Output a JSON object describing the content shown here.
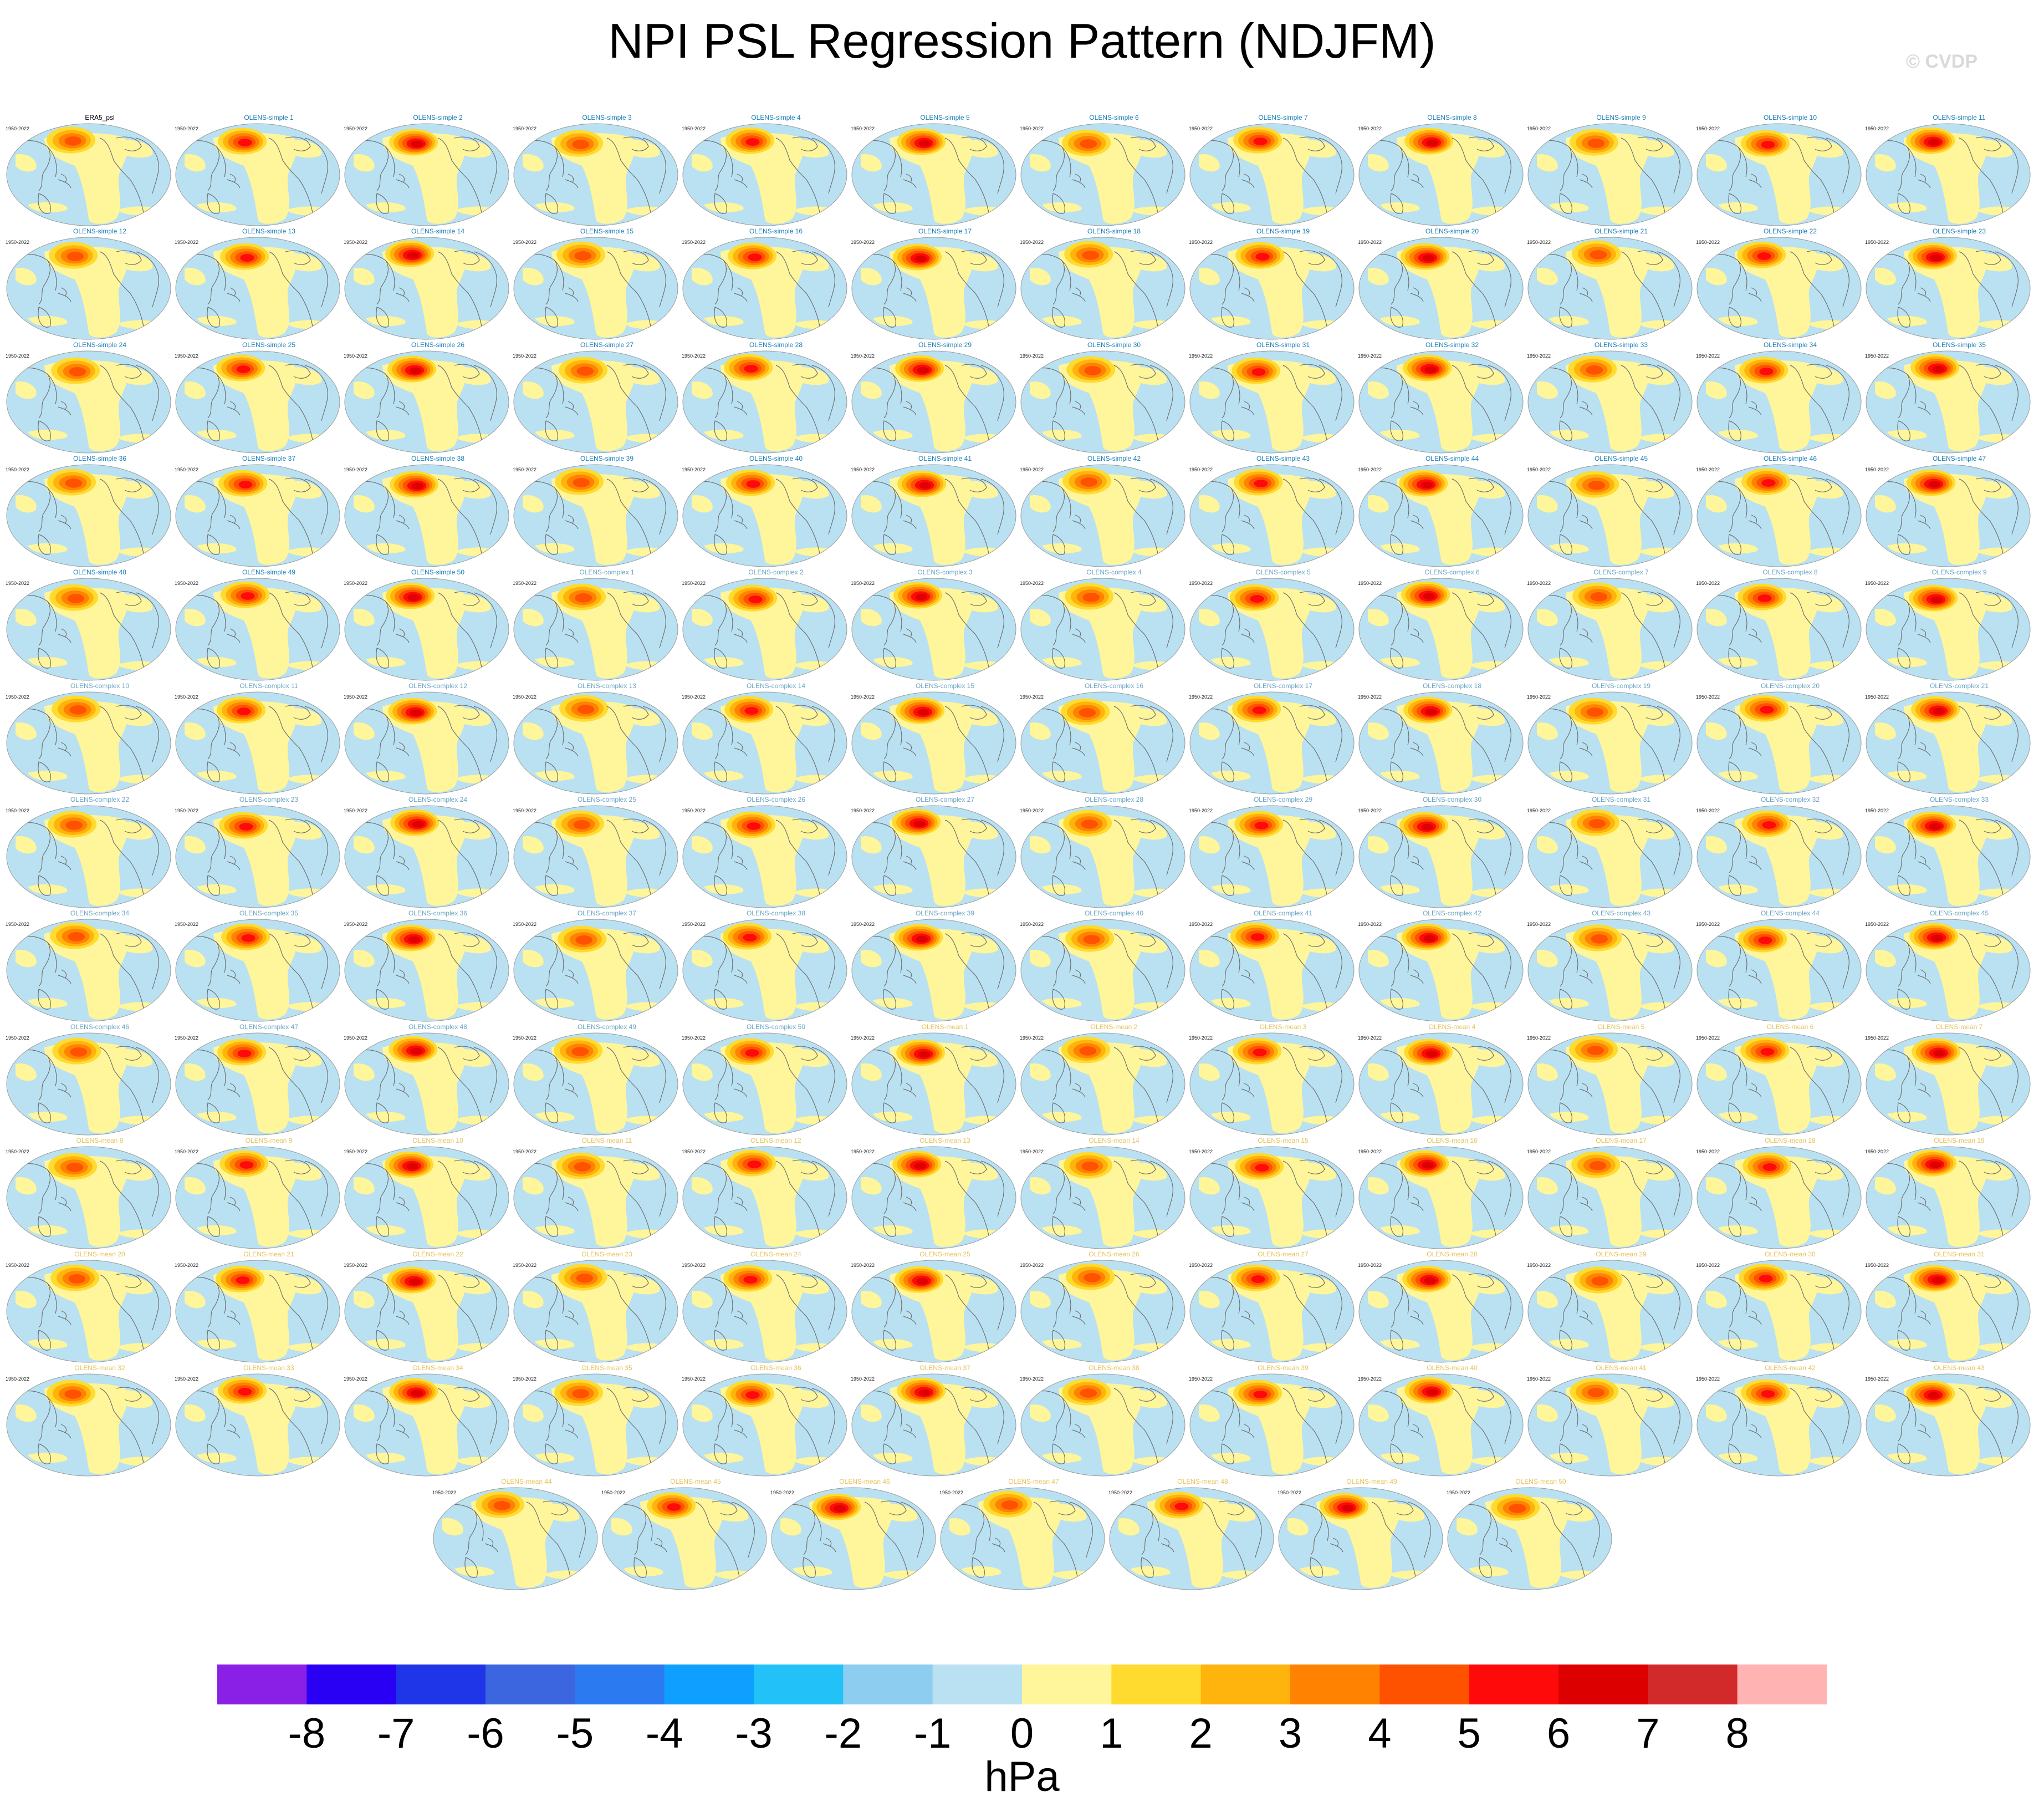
{
  "title": "NPI PSL Regression Pattern (NDJFM)",
  "watermark": "© CVDP",
  "colors": {
    "reference_title": "#000000",
    "simple_title": "#1a7fb5",
    "complex_title": "#6aa5c4",
    "mean_title": "#e6c35a",
    "ocean_bg": "#b9e1f2",
    "coast": "#707070"
  },
  "chart_data": {
    "type": "heatmap",
    "units": "hPa",
    "colorbar": {
      "ticks": [
        -8,
        -7,
        -6,
        -5,
        -4,
        -3,
        -2,
        -1,
        0,
        1,
        2,
        3,
        4,
        5,
        6,
        7,
        8
      ],
      "colors": [
        "#8a1fe6",
        "#2a00f5",
        "#1f35e8",
        "#3b66e0",
        "#2b7af0",
        "#0fa0ff",
        "#22c1f7",
        "#8ccdf0",
        "#b9e1f2",
        "#fff59a",
        "#ffdb30",
        "#ffb30d",
        "#ff8200",
        "#ff5200",
        "#ff0a0a",
        "#dc0000",
        "#d22a2a",
        "#ffb3b3"
      ]
    },
    "panels": [
      {
        "title": "ERA5_psl",
        "period": "1950-2022",
        "group": "reference"
      },
      {
        "title": "OLENS-simple 1",
        "period": "1950-2022",
        "group": "simple"
      },
      {
        "title": "OLENS-simple 2",
        "period": "1950-2022",
        "group": "simple"
      },
      {
        "title": "OLENS-simple 3",
        "period": "1950-2022",
        "group": "simple"
      },
      {
        "title": "OLENS-simple 4",
        "period": "1950-2022",
        "group": "simple"
      },
      {
        "title": "OLENS-simple 5",
        "period": "1950-2022",
        "group": "simple"
      },
      {
        "title": "OLENS-simple 6",
        "period": "1950-2022",
        "group": "simple"
      },
      {
        "title": "OLENS-simple 7",
        "period": "1950-2022",
        "group": "simple"
      },
      {
        "title": "OLENS-simple 8",
        "period": "1950-2022",
        "group": "simple"
      },
      {
        "title": "OLENS-simple 9",
        "period": "1950-2022",
        "group": "simple"
      },
      {
        "title": "OLENS-simple 10",
        "period": "1950-2022",
        "group": "simple"
      },
      {
        "title": "OLENS-simple 11",
        "period": "1950-2022",
        "group": "simple"
      },
      {
        "title": "OLENS-simple 12",
        "period": "1950-2022",
        "group": "simple"
      },
      {
        "title": "OLENS-simple 13",
        "period": "1950-2022",
        "group": "simple"
      },
      {
        "title": "OLENS-simple 14",
        "period": "1950-2022",
        "group": "simple"
      },
      {
        "title": "OLENS-simple 15",
        "period": "1950-2022",
        "group": "simple"
      },
      {
        "title": "OLENS-simple 16",
        "period": "1950-2022",
        "group": "simple"
      },
      {
        "title": "OLENS-simple 17",
        "period": "1950-2022",
        "group": "simple"
      },
      {
        "title": "OLENS-simple 18",
        "period": "1950-2022",
        "group": "simple"
      },
      {
        "title": "OLENS-simple 19",
        "period": "1950-2022",
        "group": "simple"
      },
      {
        "title": "OLENS-simple 20",
        "period": "1950-2022",
        "group": "simple"
      },
      {
        "title": "OLENS-simple 21",
        "period": "1950-2022",
        "group": "simple"
      },
      {
        "title": "OLENS-simple 22",
        "period": "1950-2022",
        "group": "simple"
      },
      {
        "title": "OLENS-simple 23",
        "period": "1950-2022",
        "group": "simple"
      },
      {
        "title": "OLENS-simple 24",
        "period": "1950-2022",
        "group": "simple"
      },
      {
        "title": "OLENS-simple 25",
        "period": "1950-2022",
        "group": "simple"
      },
      {
        "title": "OLENS-simple 26",
        "period": "1950-2022",
        "group": "simple"
      },
      {
        "title": "OLENS-simple 27",
        "period": "1950-2022",
        "group": "simple"
      },
      {
        "title": "OLENS-simple 28",
        "period": "1950-2022",
        "group": "simple"
      },
      {
        "title": "OLENS-simple 29",
        "period": "1950-2022",
        "group": "simple"
      },
      {
        "title": "OLENS-simple 30",
        "period": "1950-2022",
        "group": "simple"
      },
      {
        "title": "OLENS-simple 31",
        "period": "1950-2022",
        "group": "simple"
      },
      {
        "title": "OLENS-simple 32",
        "period": "1950-2022",
        "group": "simple"
      },
      {
        "title": "OLENS-simple 33",
        "period": "1950-2022",
        "group": "simple"
      },
      {
        "title": "OLENS-simple 34",
        "period": "1950-2022",
        "group": "simple"
      },
      {
        "title": "OLENS-simple 35",
        "period": "1950-2022",
        "group": "simple"
      },
      {
        "title": "OLENS-simple 36",
        "period": "1950-2022",
        "group": "simple"
      },
      {
        "title": "OLENS-simple 37",
        "period": "1950-2022",
        "group": "simple"
      },
      {
        "title": "OLENS-simple 38",
        "period": "1950-2022",
        "group": "simple"
      },
      {
        "title": "OLENS-simple 39",
        "period": "1950-2022",
        "group": "simple"
      },
      {
        "title": "OLENS-simple 40",
        "period": "1950-2022",
        "group": "simple"
      },
      {
        "title": "OLENS-simple 41",
        "period": "1950-2022",
        "group": "simple"
      },
      {
        "title": "OLENS-simple 42",
        "period": "1950-2022",
        "group": "simple"
      },
      {
        "title": "OLENS-simple 43",
        "period": "1950-2022",
        "group": "simple"
      },
      {
        "title": "OLENS-simple 44",
        "period": "1950-2022",
        "group": "simple"
      },
      {
        "title": "OLENS-simple 45",
        "period": "1950-2022",
        "group": "simple"
      },
      {
        "title": "OLENS-simple 46",
        "period": "1950-2022",
        "group": "simple"
      },
      {
        "title": "OLENS-simple 47",
        "period": "1950-2022",
        "group": "simple"
      },
      {
        "title": "OLENS-simple 48",
        "period": "1950-2022",
        "group": "simple"
      },
      {
        "title": "OLENS-simple 49",
        "period": "1950-2022",
        "group": "simple"
      },
      {
        "title": "OLENS-simple 50",
        "period": "1950-2022",
        "group": "simple"
      },
      {
        "title": "OLENS-complex 1",
        "period": "1950-2022",
        "group": "complex"
      },
      {
        "title": "OLENS-complex 2",
        "period": "1950-2022",
        "group": "complex"
      },
      {
        "title": "OLENS-complex 3",
        "period": "1950-2022",
        "group": "complex"
      },
      {
        "title": "OLENS-complex 4",
        "period": "1950-2022",
        "group": "complex"
      },
      {
        "title": "OLENS-complex 5",
        "period": "1950-2022",
        "group": "complex"
      },
      {
        "title": "OLENS-complex 6",
        "period": "1950-2022",
        "group": "complex"
      },
      {
        "title": "OLENS-complex 7",
        "period": "1950-2022",
        "group": "complex"
      },
      {
        "title": "OLENS-complex 8",
        "period": "1950-2022",
        "group": "complex"
      },
      {
        "title": "OLENS-complex 9",
        "period": "1950-2022",
        "group": "complex"
      },
      {
        "title": "OLENS-complex 10",
        "period": "1950-2022",
        "group": "complex"
      },
      {
        "title": "OLENS-complex 11",
        "period": "1950-2022",
        "group": "complex"
      },
      {
        "title": "OLENS-complex 12",
        "period": "1950-2022",
        "group": "complex"
      },
      {
        "title": "OLENS-complex 13",
        "period": "1950-2022",
        "group": "complex"
      },
      {
        "title": "OLENS-complex 14",
        "period": "1950-2022",
        "group": "complex"
      },
      {
        "title": "OLENS-complex 15",
        "period": "1950-2022",
        "group": "complex"
      },
      {
        "title": "OLENS-complex 16",
        "period": "1950-2022",
        "group": "complex"
      },
      {
        "title": "OLENS-complex 17",
        "period": "1950-2022",
        "group": "complex"
      },
      {
        "title": "OLENS-complex 18",
        "period": "1950-2022",
        "group": "complex"
      },
      {
        "title": "OLENS-complex 19",
        "period": "1950-2022",
        "group": "complex"
      },
      {
        "title": "OLENS-complex 20",
        "period": "1950-2022",
        "group": "complex"
      },
      {
        "title": "OLENS-complex 21",
        "period": "1950-2022",
        "group": "complex"
      },
      {
        "title": "OLENS-complex 22",
        "period": "1950-2022",
        "group": "complex"
      },
      {
        "title": "OLENS-complex 23",
        "period": "1950-2022",
        "group": "complex"
      },
      {
        "title": "OLENS-complex 24",
        "period": "1950-2022",
        "group": "complex"
      },
      {
        "title": "OLENS-complex 25",
        "period": "1950-2022",
        "group": "complex"
      },
      {
        "title": "OLENS-complex 26",
        "period": "1950-2022",
        "group": "complex"
      },
      {
        "title": "OLENS-complex 27",
        "period": "1950-2022",
        "group": "complex"
      },
      {
        "title": "OLENS-complex 28",
        "period": "1950-2022",
        "group": "complex"
      },
      {
        "title": "OLENS-complex 29",
        "period": "1950-2022",
        "group": "complex"
      },
      {
        "title": "OLENS-complex 30",
        "period": "1950-2022",
        "group": "complex"
      },
      {
        "title": "OLENS-complex 31",
        "period": "1950-2022",
        "group": "complex"
      },
      {
        "title": "OLENS-complex 32",
        "period": "1950-2022",
        "group": "complex"
      },
      {
        "title": "OLENS-complex 33",
        "period": "1950-2022",
        "group": "complex"
      },
      {
        "title": "OLENS-complex 34",
        "period": "1950-2022",
        "group": "complex"
      },
      {
        "title": "OLENS-complex 35",
        "period": "1950-2022",
        "group": "complex"
      },
      {
        "title": "OLENS-complex 36",
        "period": "1950-2022",
        "group": "complex"
      },
      {
        "title": "OLENS-complex 37",
        "period": "1950-2022",
        "group": "complex"
      },
      {
        "title": "OLENS-complex 38",
        "period": "1950-2022",
        "group": "complex"
      },
      {
        "title": "OLENS-complex 39",
        "period": "1950-2022",
        "group": "complex"
      },
      {
        "title": "OLENS-complex 40",
        "period": "1950-2022",
        "group": "complex"
      },
      {
        "title": "OLENS-complex 41",
        "period": "1950-2022",
        "group": "complex"
      },
      {
        "title": "OLENS-complex 42",
        "period": "1950-2022",
        "group": "complex"
      },
      {
        "title": "OLENS-complex 43",
        "period": "1950-2022",
        "group": "complex"
      },
      {
        "title": "OLENS-complex 44",
        "period": "1950-2022",
        "group": "complex"
      },
      {
        "title": "OLENS-complex 45",
        "period": "1950-2022",
        "group": "complex"
      },
      {
        "title": "OLENS-complex 46",
        "period": "1950-2022",
        "group": "complex"
      },
      {
        "title": "OLENS-complex 47",
        "period": "1950-2022",
        "group": "complex"
      },
      {
        "title": "OLENS-complex 48",
        "period": "1950-2022",
        "group": "complex"
      },
      {
        "title": "OLENS-complex 49",
        "period": "1950-2022",
        "group": "complex"
      },
      {
        "title": "OLENS-complex 50",
        "period": "1950-2022",
        "group": "complex"
      },
      {
        "title": "OLENS-mean 1",
        "period": "1950-2022",
        "group": "mean"
      },
      {
        "title": "OLENS-mean 2",
        "period": "1950-2022",
        "group": "mean"
      },
      {
        "title": "OLENS-mean 3",
        "period": "1950-2022",
        "group": "mean"
      },
      {
        "title": "OLENS-mean 4",
        "period": "1950-2022",
        "group": "mean"
      },
      {
        "title": "OLENS-mean 5",
        "period": "1950-2022",
        "group": "mean"
      },
      {
        "title": "OLENS-mean 6",
        "period": "1950-2022",
        "group": "mean"
      },
      {
        "title": "OLENS-mean 7",
        "period": "1950-2022",
        "group": "mean"
      },
      {
        "title": "OLENS-mean 8",
        "period": "1950-2022",
        "group": "mean"
      },
      {
        "title": "OLENS-mean 9",
        "period": "1950-2022",
        "group": "mean"
      },
      {
        "title": "OLENS-mean 10",
        "period": "1950-2022",
        "group": "mean"
      },
      {
        "title": "OLENS-mean 11",
        "period": "1950-2022",
        "group": "mean"
      },
      {
        "title": "OLENS-mean 12",
        "period": "1950-2022",
        "group": "mean"
      },
      {
        "title": "OLENS-mean 13",
        "period": "1950-2022",
        "group": "mean"
      },
      {
        "title": "OLENS-mean 14",
        "period": "1950-2022",
        "group": "mean"
      },
      {
        "title": "OLENS-mean 15",
        "period": "1950-2022",
        "group": "mean"
      },
      {
        "title": "OLENS-mean 16",
        "period": "1950-2022",
        "group": "mean"
      },
      {
        "title": "OLENS-mean 17",
        "period": "1950-2022",
        "group": "mean"
      },
      {
        "title": "OLENS-mean 18",
        "period": "1950-2022",
        "group": "mean"
      },
      {
        "title": "OLENS-mean 19",
        "period": "1950-2022",
        "group": "mean"
      },
      {
        "title": "OLENS-mean 20",
        "period": "1950-2022",
        "group": "mean"
      },
      {
        "title": "OLENS-mean 21",
        "period": "1950-2022",
        "group": "mean"
      },
      {
        "title": "OLENS-mean 22",
        "period": "1950-2022",
        "group": "mean"
      },
      {
        "title": "OLENS-mean 23",
        "period": "1950-2022",
        "group": "mean"
      },
      {
        "title": "OLENS-mean 24",
        "period": "1950-2022",
        "group": "mean"
      },
      {
        "title": "OLENS-mean 25",
        "period": "1950-2022",
        "group": "mean"
      },
      {
        "title": "OLENS-mean 26",
        "period": "1950-2022",
        "group": "mean"
      },
      {
        "title": "OLENS-mean 27",
        "period": "1950-2022",
        "group": "mean"
      },
      {
        "title": "OLENS-mean 28",
        "period": "1950-2022",
        "group": "mean"
      },
      {
        "title": "OLENS-mean 29",
        "period": "1950-2022",
        "group": "mean"
      },
      {
        "title": "OLENS-mean 30",
        "period": "1950-2022",
        "group": "mean"
      },
      {
        "title": "OLENS-mean 31",
        "period": "1950-2022",
        "group": "mean"
      },
      {
        "title": "OLENS-mean 32",
        "period": "1950-2022",
        "group": "mean"
      },
      {
        "title": "OLENS-mean 33",
        "period": "1950-2022",
        "group": "mean"
      },
      {
        "title": "OLENS-mean 34",
        "period": "1950-2022",
        "group": "mean"
      },
      {
        "title": "OLENS-mean 35",
        "period": "1950-2022",
        "group": "mean"
      },
      {
        "title": "OLENS-mean 36",
        "period": "1950-2022",
        "group": "mean"
      },
      {
        "title": "OLENS-mean 37",
        "period": "1950-2022",
        "group": "mean"
      },
      {
        "title": "OLENS-mean 38",
        "period": "1950-2022",
        "group": "mean"
      },
      {
        "title": "OLENS-mean 39",
        "period": "1950-2022",
        "group": "mean"
      },
      {
        "title": "OLENS-mean 40",
        "period": "1950-2022",
        "group": "mean"
      },
      {
        "title": "OLENS-mean 41",
        "period": "1950-2022",
        "group": "mean"
      },
      {
        "title": "OLENS-mean 42",
        "period": "1950-2022",
        "group": "mean"
      },
      {
        "title": "OLENS-mean 43",
        "period": "1950-2022",
        "group": "mean"
      },
      {
        "title": "OLENS-mean 44",
        "period": "1950-2022",
        "group": "mean"
      },
      {
        "title": "OLENS-mean 45",
        "period": "1950-2022",
        "group": "mean"
      },
      {
        "title": "OLENS-mean 46",
        "period": "1950-2022",
        "group": "mean"
      },
      {
        "title": "OLENS-mean 47",
        "period": "1950-2022",
        "group": "mean"
      },
      {
        "title": "OLENS-mean 48",
        "period": "1950-2022",
        "group": "mean"
      },
      {
        "title": "OLENS-mean 49",
        "period": "1950-2022",
        "group": "mean"
      },
      {
        "title": "OLENS-mean 50",
        "period": "1950-2022",
        "group": "mean"
      }
    ]
  }
}
